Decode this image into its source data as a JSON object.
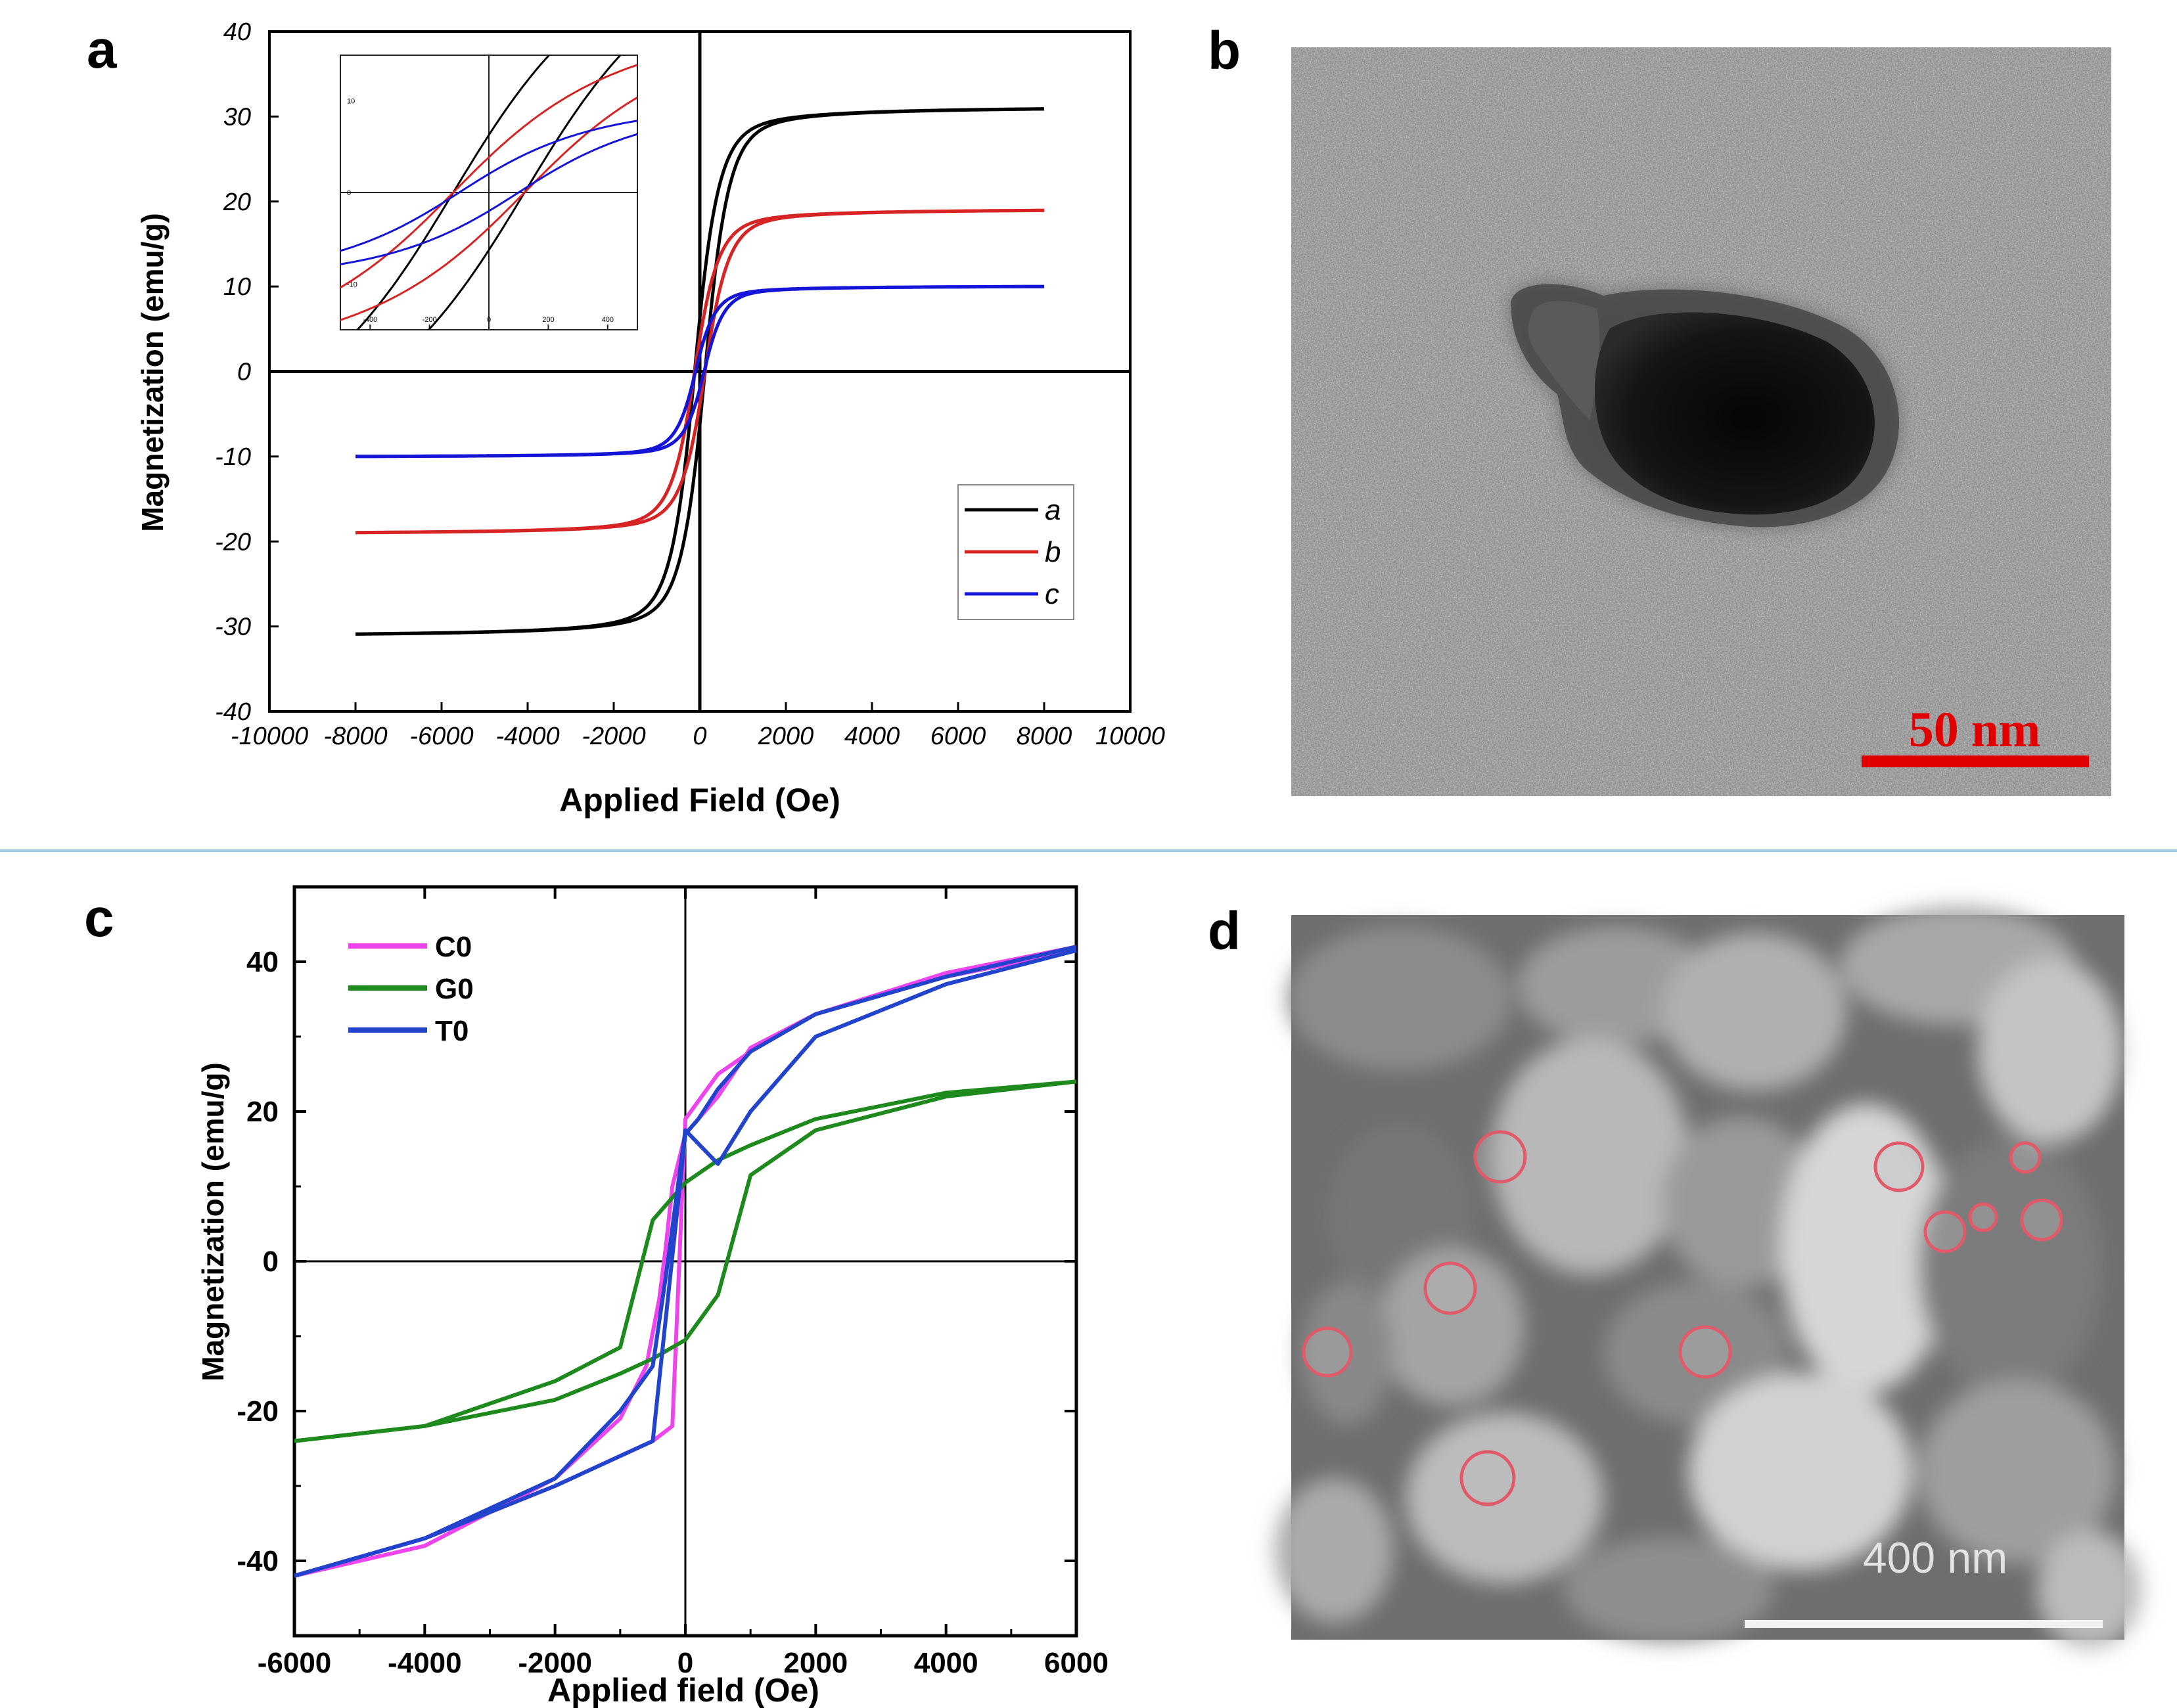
{
  "figure": {
    "divider_color": "#9cc9e6",
    "panels": {
      "a": {
        "letter": "a"
      },
      "b": {
        "letter": "b",
        "scale_bar_text": "50 nm",
        "scale_bar_color": "#e10000"
      },
      "c": {
        "letter": "c"
      },
      "d": {
        "letter": "d",
        "scale_bar_text": "400 nm",
        "circle_color": "#e05a6a"
      }
    }
  },
  "chart_data": [
    {
      "id": "a",
      "type": "line",
      "title": "",
      "xlabel": "Applied Field (Oe)",
      "ylabel": "Magnetization (emu/g)",
      "xlim": [
        -10000,
        10000
      ],
      "ylim": [
        -40,
        40
      ],
      "xticks": [
        -10000,
        -8000,
        -6000,
        -4000,
        -2000,
        0,
        2000,
        4000,
        6000,
        8000,
        10000
      ],
      "yticks": [
        -40,
        -30,
        -20,
        -10,
        0,
        10,
        20,
        30,
        40
      ],
      "legend_position": "lower-right",
      "legend_italic": true,
      "series": [
        {
          "name": "a",
          "color": "#000000",
          "ms": 31.3,
          "k": 600,
          "hc": 120
        },
        {
          "name": "b",
          "color": "#d62424",
          "ms": 19.2,
          "k": 600,
          "hc": 120
        },
        {
          "name": "c",
          "color": "#1515d8",
          "ms": 10.1,
          "k": 500,
          "hc": 100
        }
      ],
      "inset": {
        "xlim": [
          -500,
          500
        ],
        "ylim": [
          -15,
          15
        ],
        "xticks": [
          -400,
          -200,
          0,
          200,
          400
        ],
        "yticks": [
          -10,
          0,
          10
        ],
        "series": [
          {
            "name": "a",
            "color": "#000000",
            "ms": 31.3,
            "k": 600,
            "hc": 120
          },
          {
            "name": "b",
            "color": "#d62424",
            "ms": 19.2,
            "k": 600,
            "hc": 120
          },
          {
            "name": "c",
            "color": "#1515d8",
            "ms": 10.1,
            "k": 500,
            "hc": 100
          }
        ]
      }
    },
    {
      "id": "c",
      "type": "line",
      "title": "",
      "xlabel": "Applied field (Oe)",
      "ylabel": "Magnetization (emu/g)",
      "xlim": [
        -6000,
        6000
      ],
      "ylim": [
        -50,
        50
      ],
      "xticks": [
        -6000,
        -4000,
        -2000,
        0,
        2000,
        4000,
        6000
      ],
      "yticks": [
        -40,
        -20,
        0,
        20,
        40
      ],
      "legend_position": "top-left",
      "series": [
        {
          "name": "C0",
          "color": "#ee44ee",
          "upper": [
            [
              -6000,
              -42
            ],
            [
              -4000,
              -37
            ],
            [
              -2000,
              -30
            ],
            [
              -1000,
              -26
            ],
            [
              -500,
              -24
            ],
            [
              -200,
              -22
            ],
            [
              0,
              19
            ],
            [
              500,
              25
            ],
            [
              1000,
              28
            ],
            [
              2000,
              33
            ],
            [
              4000,
              38.5
            ],
            [
              6000,
              42
            ]
          ],
          "lower": [
            [
              -6000,
              -42
            ],
            [
              -4000,
              -38
            ],
            [
              -2000,
              -29
            ],
            [
              -1000,
              -21
            ],
            [
              -600,
              -14
            ],
            [
              -400,
              -5
            ],
            [
              -300,
              2
            ],
            [
              -200,
              10
            ],
            [
              0,
              17
            ],
            [
              500,
              22
            ],
            [
              1000,
              28.5
            ],
            [
              2000,
              33
            ],
            [
              4000,
              38
            ],
            [
              6000,
              41.5
            ]
          ]
        },
        {
          "name": "G0",
          "color": "#1e8a1e",
          "upper": [
            [
              -6000,
              -24
            ],
            [
              -4000,
              -22
            ],
            [
              -2000,
              -18.5
            ],
            [
              -1000,
              -15
            ],
            [
              -500,
              -13
            ],
            [
              0,
              -10.5
            ],
            [
              500,
              -4.5
            ],
            [
              1000,
              11.5
            ],
            [
              2000,
              17.5
            ],
            [
              4000,
              22
            ],
            [
              6000,
              24
            ]
          ],
          "lower": [
            [
              -6000,
              -24
            ],
            [
              -4000,
              -22
            ],
            [
              -2000,
              -16
            ],
            [
              -1000,
              -11.5
            ],
            [
              -500,
              5.5
            ],
            [
              0,
              10.5
            ],
            [
              500,
              13.5
            ],
            [
              1000,
              15.5
            ],
            [
              2000,
              19
            ],
            [
              4000,
              22.5
            ],
            [
              6000,
              24
            ]
          ]
        },
        {
          "name": "T0",
          "color": "#2244cc",
          "upper": [
            [
              -6000,
              -42
            ],
            [
              -4000,
              -37
            ],
            [
              -2000,
              -30
            ],
            [
              -1000,
              -26
            ],
            [
              -500,
              -24
            ],
            [
              0,
              17
            ],
            [
              200,
              19
            ],
            [
              500,
              23
            ],
            [
              1000,
              28
            ],
            [
              2000,
              33
            ],
            [
              4000,
              38
            ],
            [
              6000,
              42
            ]
          ],
          "lower": [
            [
              -6000,
              -42
            ],
            [
              -4000,
              -37
            ],
            [
              -2000,
              -29
            ],
            [
              -1000,
              -20
            ],
            [
              -500,
              -14
            ],
            [
              -300,
              -2
            ],
            [
              0,
              17.5
            ],
            [
              500,
              13
            ],
            [
              1000,
              20
            ],
            [
              2000,
              30
            ],
            [
              4000,
              37
            ],
            [
              6000,
              41.5
            ]
          ]
        }
      ]
    }
  ]
}
